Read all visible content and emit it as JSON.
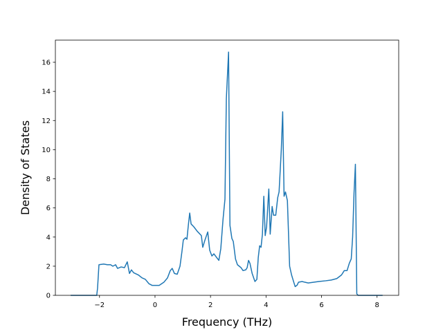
{
  "chart_data": {
    "type": "line",
    "xlabel": "Frequency (THz)",
    "ylabel": "Density of States",
    "color": "#1f77b4",
    "x": [
      -3.04,
      -2.1,
      -2.07,
      -2.02,
      -1.85,
      -1.72,
      -1.6,
      -1.52,
      -1.42,
      -1.35,
      -1.22,
      -1.1,
      -1.0,
      -0.92,
      -0.85,
      -0.77,
      -0.6,
      -0.47,
      -0.35,
      -0.22,
      -0.1,
      0.15,
      0.32,
      0.45,
      0.55,
      0.62,
      0.7,
      0.8,
      0.9,
      0.97,
      1.02,
      1.1,
      1.15,
      1.2,
      1.25,
      1.3,
      1.4,
      1.52,
      1.67,
      1.72,
      1.8,
      1.9,
      1.97,
      2.05,
      2.12,
      2.22,
      2.3,
      2.37,
      2.45,
      2.52,
      2.57,
      2.65,
      2.7,
      2.77,
      2.82,
      2.9,
      2.97,
      3.1,
      3.17,
      3.27,
      3.32,
      3.37,
      3.42,
      3.5,
      3.6,
      3.67,
      3.72,
      3.77,
      3.82,
      3.87,
      3.92,
      3.97,
      4.02,
      4.1,
      4.15,
      4.22,
      4.27,
      4.35,
      4.42,
      4.47,
      4.55,
      4.6,
      4.65,
      4.7,
      4.77,
      4.85,
      4.92,
      5.0,
      5.05,
      5.12,
      5.17,
      5.3,
      5.4,
      5.52,
      5.9,
      6.15,
      6.35,
      6.55,
      6.72,
      6.82,
      6.92,
      7.0,
      7.07,
      7.12,
      7.17,
      7.22,
      7.27,
      7.32,
      8.2
    ],
    "values": [
      0,
      0,
      0.5,
      2.1,
      2.15,
      2.1,
      2.1,
      2.0,
      2.1,
      1.85,
      1.95,
      1.9,
      2.3,
      1.5,
      1.75,
      1.55,
      1.4,
      1.2,
      1.1,
      0.8,
      0.68,
      0.68,
      0.9,
      1.2,
      1.7,
      1.85,
      1.5,
      1.45,
      2.0,
      3.0,
      3.8,
      3.95,
      3.85,
      4.8,
      5.65,
      4.9,
      4.7,
      4.4,
      4.1,
      3.3,
      3.8,
      4.35,
      3.1,
      2.7,
      2.85,
      2.6,
      2.4,
      3.2,
      5.2,
      6.6,
      13.5,
      16.7,
      4.8,
      3.9,
      3.7,
      2.5,
      2.1,
      1.9,
      1.7,
      1.75,
      1.9,
      2.4,
      2.2,
      1.5,
      0.95,
      1.1,
      2.6,
      3.4,
      3.3,
      4.2,
      6.8,
      4.1,
      4.7,
      7.3,
      4.2,
      6.1,
      5.5,
      5.5,
      6.7,
      7.1,
      10,
      12.6,
      6.8,
      7.1,
      6.5,
      2.0,
      1.4,
      0.9,
      0.6,
      0.7,
      0.9,
      0.95,
      0.9,
      0.85,
      0.95,
      1.0,
      1.05,
      1.15,
      1.4,
      1.7,
      1.7,
      2.2,
      2.5,
      4,
      7,
      9.0,
      0.1,
      0,
      0
    ],
    "xlim": [
      -3.59,
      8.78
    ],
    "ylim": [
      0,
      17.52
    ],
    "xticks": [
      {
        "value": -2,
        "label": "−2"
      },
      0,
      2,
      4,
      6,
      8
    ],
    "yticks": [
      0,
      2,
      4,
      6,
      8,
      10,
      12,
      14,
      16
    ]
  }
}
